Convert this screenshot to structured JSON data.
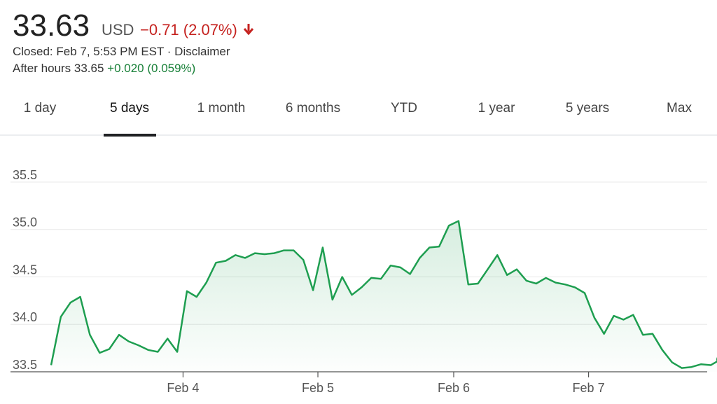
{
  "header": {
    "price": "33.63",
    "currency": "USD",
    "change": "−0.71 (2.07%)",
    "closed": "Closed: Feb 7, 5:53 PM EST · Disclaimer",
    "after_hours_label": "After hours 33.65",
    "after_hours_change": "+0.020 (0.059%)"
  },
  "tabs": [
    "1 day",
    "5 days",
    "1 month",
    "6 months",
    "YTD",
    "1 year",
    "5 years",
    "Max"
  ],
  "selected_tab": "5 days",
  "chart_data": {
    "type": "line",
    "color": "#1e9e50",
    "values": [
      33.57,
      34.08,
      34.23,
      34.29,
      33.89,
      33.7,
      33.74,
      33.89,
      33.82,
      33.78,
      33.73,
      33.71,
      33.85,
      33.71,
      34.35,
      34.29,
      34.44,
      34.65,
      34.67,
      34.73,
      34.7,
      34.75,
      34.74,
      34.75,
      34.78,
      34.78,
      34.68,
      34.36,
      34.81,
      34.26,
      34.5,
      34.31,
      34.39,
      34.49,
      34.48,
      34.62,
      34.6,
      34.53,
      34.7,
      34.81,
      34.82,
      35.04,
      35.09,
      34.42,
      34.43,
      34.58,
      34.73,
      34.52,
      34.58,
      34.46,
      34.43,
      34.49,
      34.44,
      34.42,
      34.39,
      34.33,
      34.07,
      33.9,
      34.09,
      34.05,
      34.1,
      33.89,
      33.9,
      33.73,
      33.6,
      33.54,
      33.55,
      33.58,
      33.57,
      33.63
    ],
    "xlim": [
      0,
      69
    ],
    "xticks": [
      {
        "value": 13.6,
        "label": "Feb 4"
      },
      {
        "value": 27.5,
        "label": "Feb 5"
      },
      {
        "value": 41.5,
        "label": "Feb 6"
      },
      {
        "value": 55.4,
        "label": "Feb 7"
      }
    ],
    "ylim": [
      33.5,
      35.5
    ],
    "yticks": [
      {
        "value": 33.5,
        "label": "33.5"
      },
      {
        "value": 34.0,
        "label": "34.0"
      },
      {
        "value": 34.5,
        "label": "34.5"
      },
      {
        "value": 35.0,
        "label": "35.0"
      },
      {
        "value": 35.5,
        "label": "35.5"
      }
    ],
    "grid": true
  }
}
